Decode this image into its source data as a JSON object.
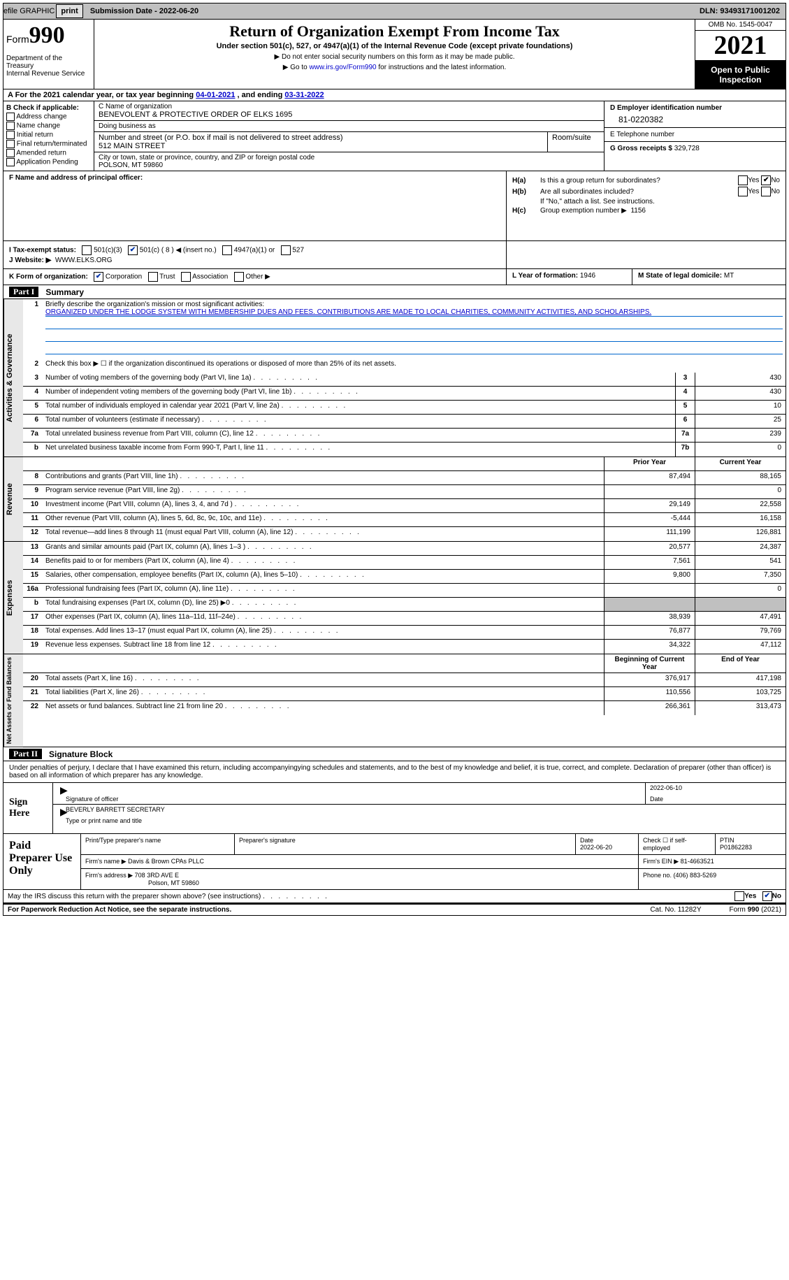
{
  "topbar": {
    "efile": "efile GRAPHIC",
    "print": "print",
    "subdate_label": "Submission Date - ",
    "subdate": "2022-06-20",
    "dln_label": "DLN: ",
    "dln": "93493171001202"
  },
  "header": {
    "form_prefix": "Form",
    "form_num": "990",
    "dept": "Department of the Treasury\nInternal Revenue Service",
    "title": "Return of Organization Exempt From Income Tax",
    "sub1": "Under section 501(c), 527, or 4947(a)(1) of the Internal Revenue Code (except private foundations)",
    "sub2": "▶ Do not enter social security numbers on this form as it may be made public.",
    "sub3_pre": "▶ Go to ",
    "sub3_link": "www.irs.gov/Form990",
    "sub3_post": " for instructions and the latest information.",
    "omb": "OMB No. 1545-0047",
    "year": "2021",
    "open": "Open to Public Inspection"
  },
  "row_a": {
    "text_pre": "A For the 2021 calendar year, or tax year beginning ",
    "begin": "04-01-2021",
    "text_mid": "   , and ending ",
    "end": "03-31-2022"
  },
  "col_b": {
    "label": "B Check if applicable:",
    "opts": [
      "Address change",
      "Name change",
      "Initial return",
      "Final return/terminated",
      "Amended return",
      "Application Pending"
    ]
  },
  "col_c": {
    "name_label": "C Name of organization",
    "name": "BENEVOLENT & PROTECTIVE ORDER OF ELKS 1695",
    "dba_label": "Doing business as",
    "dba": "",
    "street_label": "Number and street (or P.O. box if mail is not delivered to street address)",
    "street": "512 MAIN STREET",
    "room_label": "Room/suite",
    "city_label": "City or town, state or province, country, and ZIP or foreign postal code",
    "city": "POLSON, MT  59860"
  },
  "col_d": {
    "ein_label": "D Employer identification number",
    "ein": "81-0220382",
    "tel_label": "E Telephone number",
    "tel": "",
    "gross_label": "G Gross receipts $ ",
    "gross": "329,728"
  },
  "col_f": {
    "label": "F  Name and address of principal officer:",
    "value": ""
  },
  "col_h": {
    "a_label": "H(a)",
    "a_text": "Is this a group return for subordinates?",
    "a_yes": "Yes",
    "a_no": "No",
    "a_checked": "no",
    "b_label": "H(b)",
    "b_text": "Are all subordinates included?",
    "b_yes": "Yes",
    "b_no": "No",
    "b_note": "If \"No,\" attach a list. See instructions.",
    "c_label": "H(c)",
    "c_text": "Group exemption number ▶",
    "c_val": "1156"
  },
  "row_i": {
    "label": "I  Tax-exempt status:",
    "opts": [
      "501(c)(3)",
      "501(c) ( 8 ) ◀ (insert no.)",
      "4947(a)(1) or",
      "527"
    ],
    "checked_index": 1
  },
  "row_j": {
    "label": "J  Website: ▶",
    "value": "WWW.ELKS.ORG"
  },
  "row_k": {
    "label": "K Form of organization:",
    "opts": [
      "Corporation",
      "Trust",
      "Association",
      "Other ▶"
    ],
    "checked_index": 0,
    "l_label": "L Year of formation: ",
    "l_val": "1946",
    "m_label": "M State of legal domicile: ",
    "m_val": "MT"
  },
  "part1": {
    "num": "Part I",
    "title": "Summary"
  },
  "mission": {
    "num": "1",
    "label": "Briefly describe the organization's mission or most significant activities:",
    "text": "ORGANIZED UNDER THE LODGE SYSTEM WITH MEMBERSHIP DUES AND FEES. CONTRIBUTIONS ARE MADE TO LOCAL CHARITIES, COMMUNITY ACTIVITIES, AND SCHOLARSHIPS."
  },
  "line2": {
    "num": "2",
    "text": "Check this box ▶ ☐ if the organization discontinued its operations or disposed of more than 25% of its net assets."
  },
  "gov_lines": [
    {
      "num": "3",
      "text": "Number of voting members of the governing body (Part VI, line 1a)",
      "box": "3",
      "val": "430"
    },
    {
      "num": "4",
      "text": "Number of independent voting members of the governing body (Part VI, line 1b)",
      "box": "4",
      "val": "430"
    },
    {
      "num": "5",
      "text": "Total number of individuals employed in calendar year 2021 (Part V, line 2a)",
      "box": "5",
      "val": "10"
    },
    {
      "num": "6",
      "text": "Total number of volunteers (estimate if necessary)",
      "box": "6",
      "val": "25"
    },
    {
      "num": "7a",
      "text": "Total unrelated business revenue from Part VIII, column (C), line 12",
      "box": "7a",
      "val": "239"
    },
    {
      "num": "b",
      "text": "Net unrelated business taxable income from Form 990-T, Part I, line 11",
      "box": "7b",
      "val": "0"
    }
  ],
  "col_hdrs": {
    "prior": "Prior Year",
    "current": "Current Year"
  },
  "revenue_lines": [
    {
      "num": "8",
      "text": "Contributions and grants (Part VIII, line 1h)",
      "prior": "87,494",
      "current": "88,165"
    },
    {
      "num": "9",
      "text": "Program service revenue (Part VIII, line 2g)",
      "prior": "",
      "current": "0"
    },
    {
      "num": "10",
      "text": "Investment income (Part VIII, column (A), lines 3, 4, and 7d )",
      "prior": "29,149",
      "current": "22,558"
    },
    {
      "num": "11",
      "text": "Other revenue (Part VIII, column (A), lines 5, 6d, 8c, 9c, 10c, and 11e)",
      "prior": "-5,444",
      "current": "16,158"
    },
    {
      "num": "12",
      "text": "Total revenue—add lines 8 through 11 (must equal Part VIII, column (A), line 12)",
      "prior": "111,199",
      "current": "126,881"
    }
  ],
  "expense_lines": [
    {
      "num": "13",
      "text": "Grants and similar amounts paid (Part IX, column (A), lines 1–3 )",
      "prior": "20,577",
      "current": "24,387"
    },
    {
      "num": "14",
      "text": "Benefits paid to or for members (Part IX, column (A), line 4)",
      "prior": "7,561",
      "current": "541"
    },
    {
      "num": "15",
      "text": "Salaries, other compensation, employee benefits (Part IX, column (A), lines 5–10)",
      "prior": "9,800",
      "current": "7,350"
    },
    {
      "num": "16a",
      "text": "Professional fundraising fees (Part IX, column (A), line 11e)",
      "prior": "",
      "current": "0"
    },
    {
      "num": "b",
      "text": "Total fundraising expenses (Part IX, column (D), line 25) ▶0",
      "prior": "shade",
      "current": "shade"
    },
    {
      "num": "17",
      "text": "Other expenses (Part IX, column (A), lines 11a–11d, 11f–24e)",
      "prior": "38,939",
      "current": "47,491"
    },
    {
      "num": "18",
      "text": "Total expenses. Add lines 13–17 (must equal Part IX, column (A), line 25)",
      "prior": "76,877",
      "current": "79,769"
    },
    {
      "num": "19",
      "text": "Revenue less expenses. Subtract line 18 from line 12",
      "prior": "34,322",
      "current": "47,112"
    }
  ],
  "net_hdrs": {
    "begin": "Beginning of Current Year",
    "end": "End of Year"
  },
  "net_lines": [
    {
      "num": "20",
      "text": "Total assets (Part X, line 16)",
      "prior": "376,917",
      "current": "417,198"
    },
    {
      "num": "21",
      "text": "Total liabilities (Part X, line 26)",
      "prior": "110,556",
      "current": "103,725"
    },
    {
      "num": "22",
      "text": "Net assets or fund balances. Subtract line 21 from line 20",
      "prior": "266,361",
      "current": "313,473"
    }
  ],
  "vtabs": {
    "gov": "Activities & Governance",
    "rev": "Revenue",
    "exp": "Expenses",
    "net": "Net Assets or Fund Balances"
  },
  "part2": {
    "num": "Part II",
    "title": "Signature Block"
  },
  "sig_intro": "Under penalties of perjury, I declare that I have examined this return, including accompanyingying schedules and statements, and to the best of my knowledge and belief, it is true, correct, and complete. Declaration of preparer (other than officer) is based on all information of which preparer has any knowledge.",
  "sign_here": "Sign Here",
  "sig": {
    "sig_label": "Signature of officer",
    "date_label": "Date",
    "date": "2022-06-10",
    "name": "BEVERLY BARRETT SECRETARY",
    "name_label": "Type or print name and title"
  },
  "paid_label": "Paid Preparer Use Only",
  "prep": {
    "name_label": "Print/Type preparer's name",
    "name": "",
    "sig_label": "Preparer's signature",
    "date_label": "Date",
    "date": "2022-06-20",
    "check_label": "Check ☐ if self-employed",
    "ptin_label": "PTIN",
    "ptin": "P01862283",
    "firm_name_label": "Firm's name    ▶",
    "firm_name": "Davis & Brown CPAs PLLC",
    "firm_ein_label": "Firm's EIN ▶",
    "firm_ein": "81-4663521",
    "firm_addr_label": "Firm's address ▶",
    "firm_addr1": "708 3RD AVE E",
    "firm_addr2": "Polson, MT  59860",
    "phone_label": "Phone no. ",
    "phone": "(406) 883-5269"
  },
  "discuss": {
    "text": "May the IRS discuss this return with the preparer shown above? (see instructions)",
    "yes": "Yes",
    "no": "No",
    "checked": "no"
  },
  "footer": {
    "left": "For Paperwork Reduction Act Notice, see the separate instructions.",
    "mid": "Cat. No. 11282Y",
    "right": "Form 990 (2021)"
  }
}
